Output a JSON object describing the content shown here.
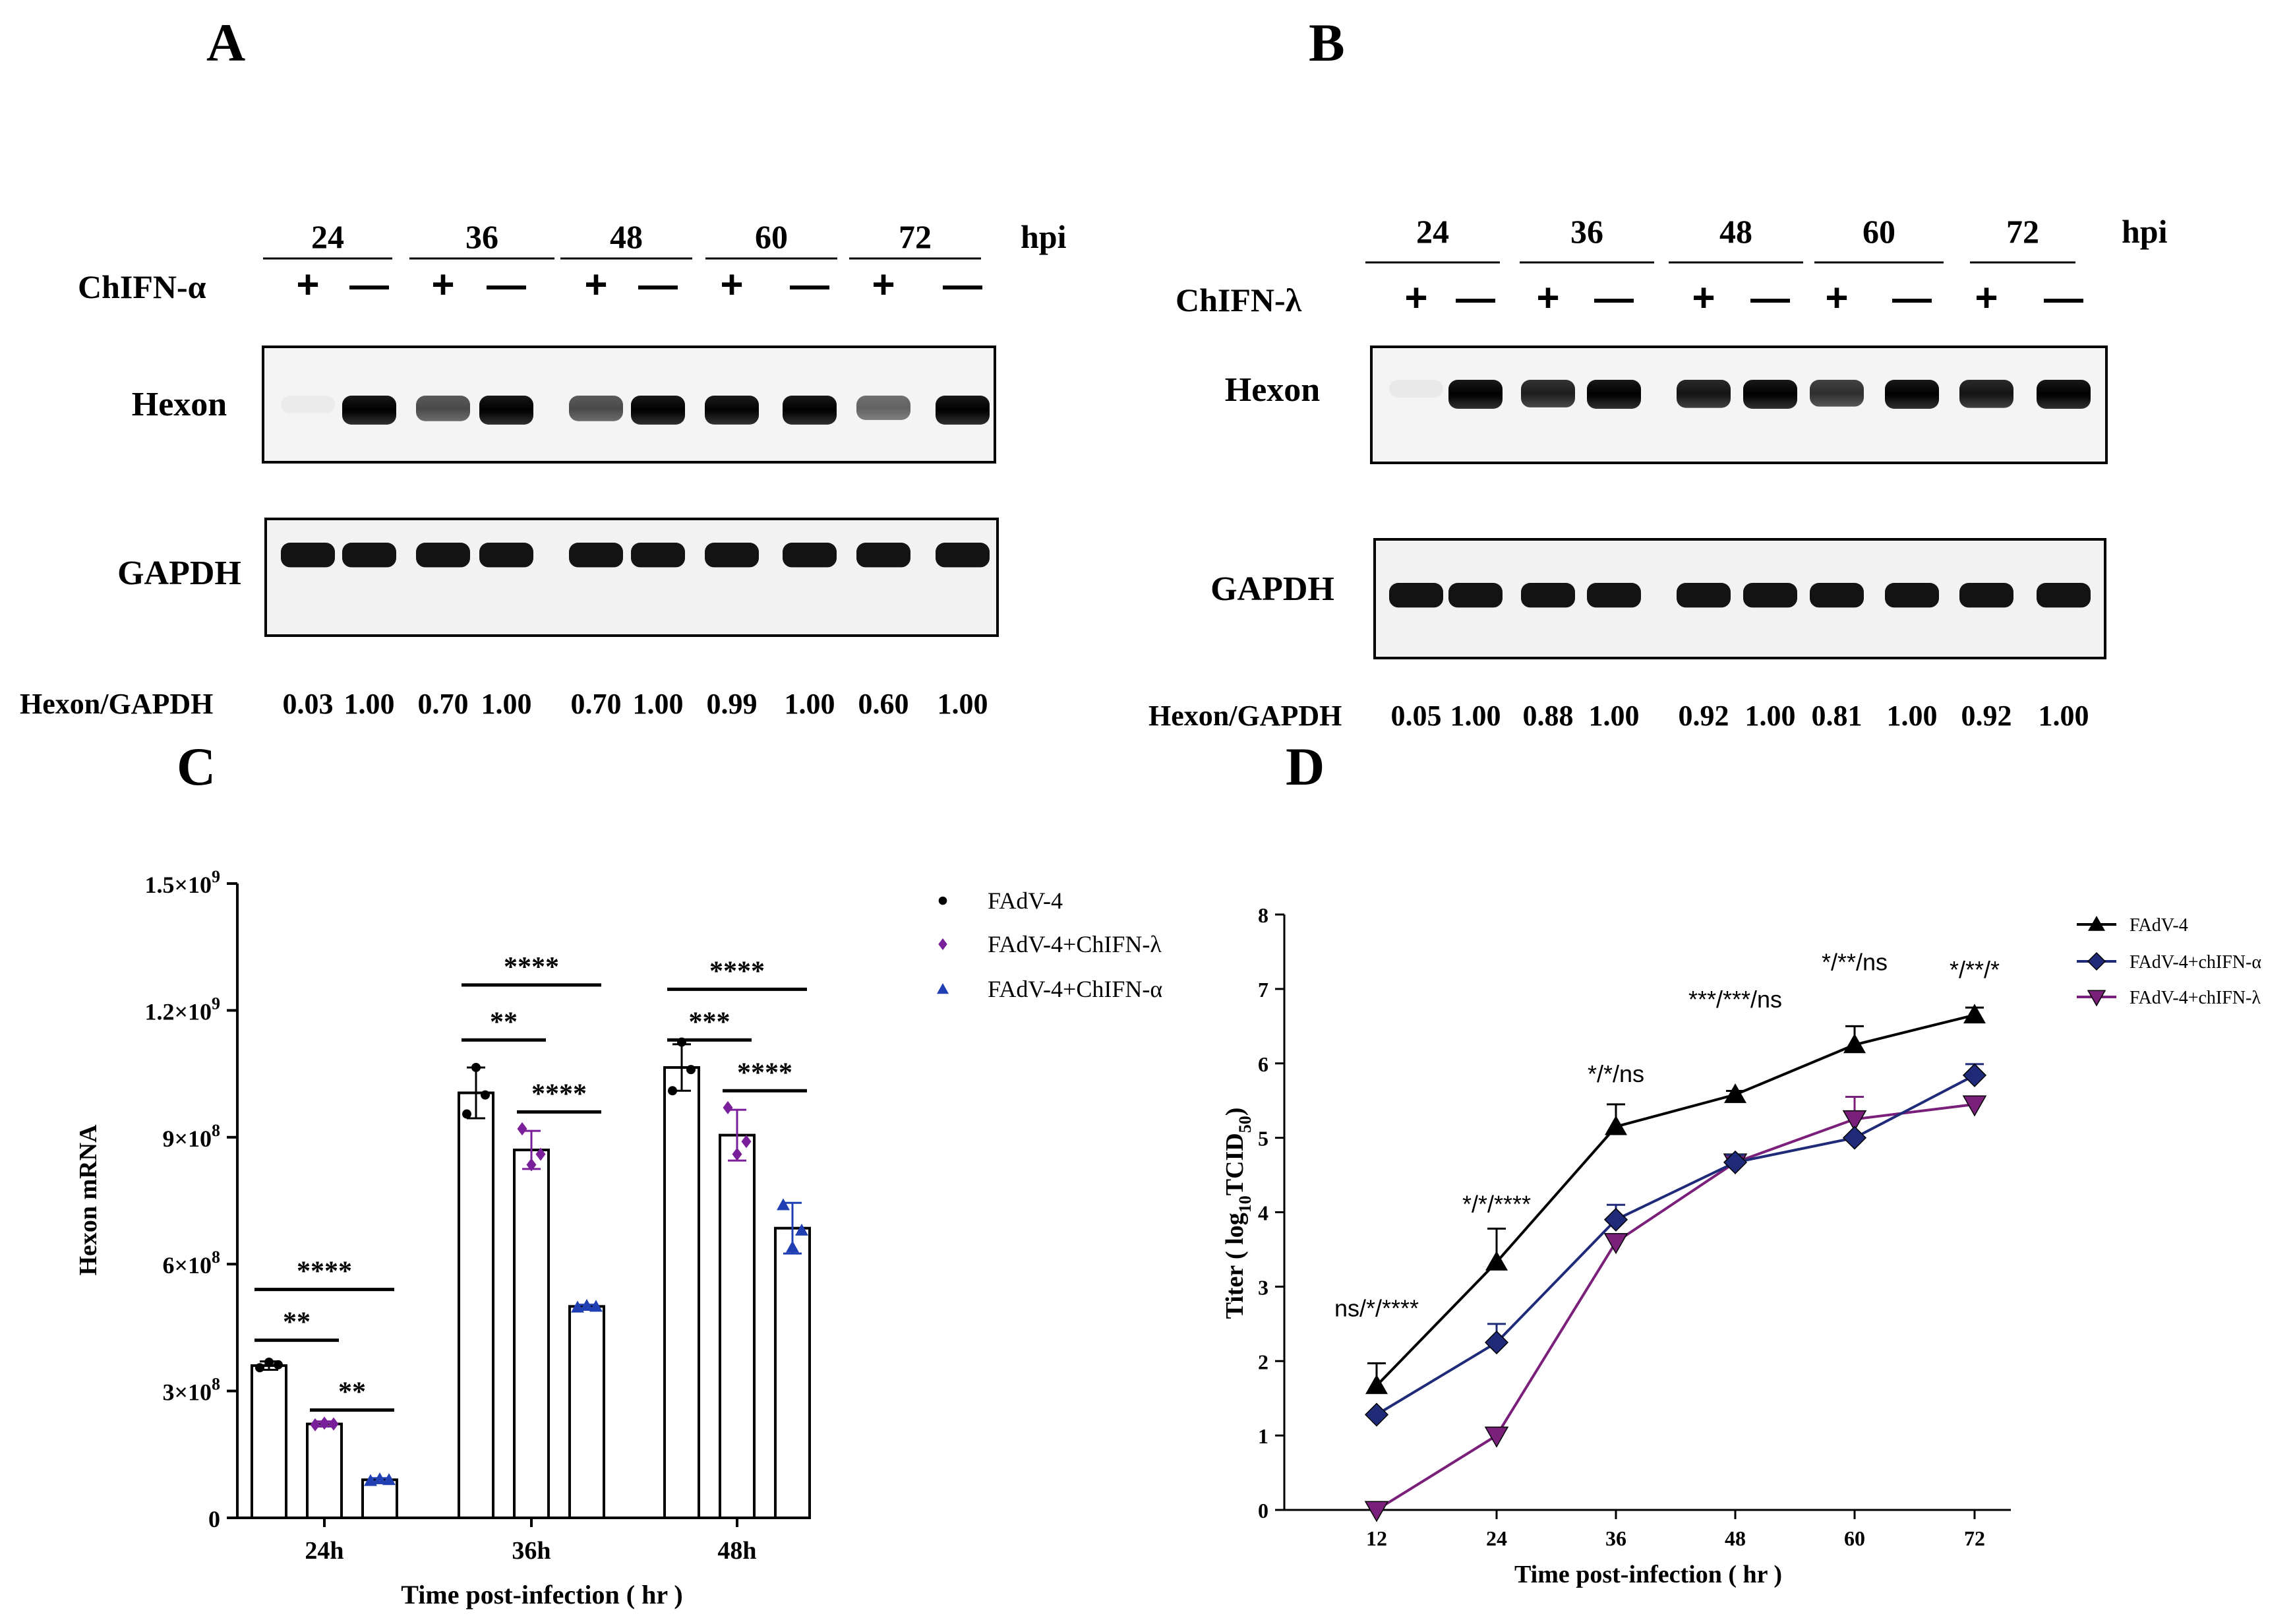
{
  "panels": {
    "A": {
      "letter": "A",
      "hpi": "hpi",
      "timepoints": [
        "24",
        "36",
        "48",
        "60",
        "72"
      ],
      "treatment": "ChIFN-α",
      "signs": [
        "+",
        "—",
        "+",
        "—",
        "+",
        "—",
        "+",
        "—",
        "+",
        "—"
      ],
      "rows": [
        "Hexon",
        "GAPDH"
      ],
      "ratio_label": "Hexon/GAPDH",
      "ratios": [
        "0.03",
        "1.00",
        "0.70",
        "1.00",
        "0.70",
        "1.00",
        "0.99",
        "1.00",
        "0.60",
        "1.00"
      ]
    },
    "B": {
      "letter": "B",
      "hpi": "hpi",
      "timepoints": [
        "24",
        "36",
        "48",
        "60",
        "72"
      ],
      "treatment": "ChIFN-λ",
      "signs": [
        "+",
        "—",
        "+",
        "—",
        "+",
        "—",
        "+",
        "—",
        "+",
        "—"
      ],
      "rows": [
        "Hexon",
        "GAPDH"
      ],
      "ratio_label": "Hexon/GAPDH",
      "ratios": [
        "0.05",
        "1.00",
        "0.88",
        "1.00",
        "0.92",
        "1.00",
        "0.81",
        "1.00",
        "0.92",
        "1.00"
      ]
    },
    "C": {
      "letter": "C"
    },
    "D": {
      "letter": "D"
    }
  },
  "chart_data": [
    {
      "id": "C",
      "type": "bar",
      "title": "",
      "xlabel": "Time post-infection ( hr )",
      "ylabel": "Hexon mRNA",
      "ylim": [
        0,
        1500000000
      ],
      "yticks": [
        0,
        300000000,
        600000000,
        900000000,
        1200000000,
        1500000000
      ],
      "ytick_labels": [
        "0",
        "3×10",
        "6×10",
        "9×10",
        "1.2×10",
        "1.5×10"
      ],
      "ytick_exponents": [
        "",
        "8",
        "8",
        "8",
        "9",
        "9"
      ],
      "categories": [
        "24h",
        "36h",
        "48h"
      ],
      "series": [
        {
          "name": "FAdV-4",
          "color": "#000000",
          "marker": "circle",
          "values": [
            360000000,
            1005000000,
            1065000000
          ],
          "errors": [
            10000000,
            60000000,
            55000000
          ],
          "points": [
            [
              355000000,
              368000000,
              362000000
            ],
            [
              955000000,
              1065000000,
              1000000000
            ],
            [
              1010000000,
              1125000000,
              1060000000
            ]
          ]
        },
        {
          "name": "FAdV-4+ChIFN-λ",
          "color": "#7a1f9a",
          "marker": "diamond",
          "values": [
            222000000,
            870000000,
            905000000
          ],
          "errors": [
            6000000,
            45000000,
            60000000
          ],
          "points": [
            [
              220000000,
              224000000,
              222000000
            ],
            [
              920000000,
              835000000,
              860000000
            ],
            [
              970000000,
              860000000,
              890000000
            ]
          ]
        },
        {
          "name": "FAdV-4+ChIFN-α",
          "color": "#1f3fb3",
          "marker": "triangle",
          "values": [
            90000000,
            500000000,
            685000000
          ],
          "errors": [
            4000000,
            4000000,
            60000000
          ],
          "points": [
            [
              88000000,
              92000000,
              90000000
            ],
            [
              498000000,
              502000000,
              500000000
            ],
            [
              740000000,
              640000000,
              680000000
            ]
          ]
        }
      ],
      "annotations": [
        {
          "text": "****",
          "from": [
            0,
            0
          ],
          "to": [
            0,
            2
          ],
          "y": 540000000
        },
        {
          "text": "**",
          "from": [
            0,
            0
          ],
          "to": [
            0,
            1
          ],
          "y": 420000000
        },
        {
          "text": "**",
          "from": [
            0,
            1
          ],
          "to": [
            0,
            2
          ],
          "y": 255000000
        },
        {
          "text": "****",
          "from": [
            1,
            0
          ],
          "to": [
            1,
            2
          ],
          "y": 1260000000
        },
        {
          "text": "**",
          "from": [
            1,
            0
          ],
          "to": [
            1,
            1
          ],
          "y": 1130000000
        },
        {
          "text": "****",
          "from": [
            1,
            1
          ],
          "to": [
            1,
            2
          ],
          "y": 960000000
        },
        {
          "text": "****",
          "from": [
            2,
            0
          ],
          "to": [
            2,
            2
          ],
          "y": 1250000000
        },
        {
          "text": "***",
          "from": [
            2,
            0
          ],
          "to": [
            2,
            1
          ],
          "y": 1130000000
        },
        {
          "text": "****",
          "from": [
            2,
            1
          ],
          "to": [
            2,
            2
          ],
          "y": 1010000000
        }
      ],
      "legend_position": "top-right"
    },
    {
      "id": "D",
      "type": "line",
      "title": "",
      "xlabel": "Time post-infection ( hr )",
      "ylabel_main": "Titer ( log",
      "ylabel_sub": "10",
      "ylabel_main2": "TCID",
      "ylabel_sub2": "50",
      "ylabel_end": ")",
      "x": [
        12,
        24,
        36,
        48,
        60,
        72
      ],
      "xtick_labels": [
        "12",
        "24",
        "36",
        "48",
        "60",
        "72"
      ],
      "ylim": [
        0,
        8
      ],
      "yticks": [
        0,
        1,
        2,
        3,
        4,
        5,
        6,
        7,
        8
      ],
      "ytick_labels": [
        "0",
        "1",
        "2",
        "3",
        "4",
        "5",
        "6",
        "7",
        "8"
      ],
      "series": [
        {
          "name": "FAdV-4",
          "color": "#000000",
          "marker": "triangle",
          "values": [
            1.67,
            3.33,
            5.15,
            5.58,
            6.25,
            6.65
          ],
          "errors": [
            0.3,
            0.45,
            0.3,
            0.05,
            0.25,
            0.1
          ]
        },
        {
          "name": "FAdV-4+chIFN-α",
          "color": "#1f2a78",
          "marker": "diamond",
          "values": [
            1.28,
            2.25,
            3.9,
            4.67,
            5.0,
            5.84
          ],
          "errors": [
            0.0,
            0.25,
            0.2,
            0.1,
            0.0,
            0.15
          ]
        },
        {
          "name": "FAdV-4+chIFN-λ",
          "color": "#7a1f7a",
          "marker": "triangle-down",
          "values": [
            0.0,
            1.0,
            3.6,
            4.67,
            5.25,
            5.45
          ],
          "errors": [
            0.0,
            0.0,
            0.0,
            0.1,
            0.3,
            0.0
          ]
        }
      ],
      "annotations": [
        {
          "text": "ns/*/****",
          "x": 12,
          "y": 2.6
        },
        {
          "text": "*/*/****",
          "x": 24,
          "y": 4.0
        },
        {
          "text": "*/*/ns",
          "x": 36,
          "y": 5.75
        },
        {
          "text": "***/***/ns",
          "x": 48,
          "y": 6.75
        },
        {
          "text": "*/**/ns",
          "x": 60,
          "y": 7.25
        },
        {
          "text": "*/**/*",
          "x": 72,
          "y": 7.15
        }
      ],
      "legend_position": "top-right"
    }
  ]
}
